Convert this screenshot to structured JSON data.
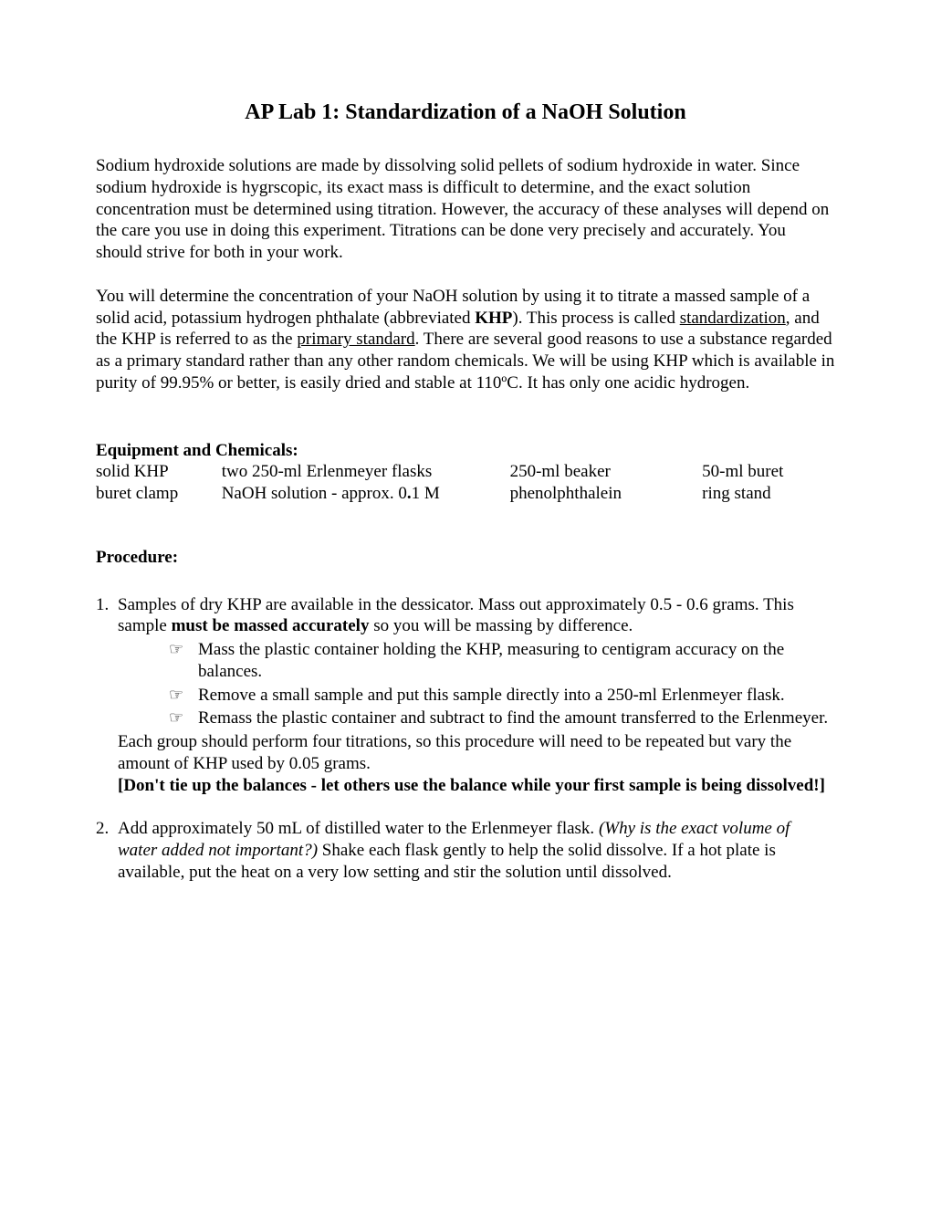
{
  "title": "AP Lab 1: Standardization of a NaOH Solution",
  "para1_a": "Sodium hydroxide solutions are made by dissolving solid pellets of sodium hydroxide in water.  Since sodium hydroxide is hygrscopic, its exact mass is difficult to determine, and the exact solution concentration must be determined using titration.  However, the accuracy of these analyses will depend on the care you use in doing this experiment.  Titrations can be done very precisely and accurately.  You should strive for both in your work.",
  "para2_a": "You will determine the concentration of your NaOH solution by using it to titrate a massed sample of a solid acid, potassium hydrogen phthalate (abbreviated ",
  "para2_b": "KHP",
  "para2_c": ").  This process is called ",
  "para2_d": "standardization",
  "para2_e": ", and the KHP is referred to as the ",
  "para2_f": "primary standard",
  "para2_g": ".  There are several good reasons to use a substance regarded as a primary standard rather than any other random chemicals.  We will be using KHP which is available in purity of 99.95% or better, is easily dried and stable at 110ºC.  It has only one acidic hydrogen.",
  "equipment_header": "Equipment and Chemicals:",
  "equip": {
    "r1c1": "solid KHP",
    "r1c2": "two 250-ml Erlenmeyer flasks",
    "r1c3": "250-ml beaker",
    "r1c4": "50-ml buret",
    "r2c1": "buret clamp",
    "r2c2_a": "NaOH solution - approx. 0",
    "r2c2_b": ".",
    "r2c2_c": "1 M",
    "r2c3": "phenolphthalein",
    "r2c4": "ring stand"
  },
  "procedure_header": "Procedure:",
  "p1_num": "1.",
  "p1_a": "Samples of dry KHP are available in the dessicator.  Mass out approximately 0.5 - 0.6 grams. This sample ",
  "p1_b": "must be massed accurately",
  "p1_c": " so you will be massing by difference.",
  "p1_bullet1": "Mass the plastic container holding the KHP, measuring to centigram accuracy on the balances.",
  "p1_bullet2": "Remove a small sample and put this sample directly into a 250-ml Erlenmeyer flask.",
  "p1_bullet3": "Remass the plastic container and subtract to find the amount transferred to the Erlenmeyer.",
  "p1_d": "Each group should perform four titrations, so this procedure will need to be repeated but vary the amount of KHP used by 0.05 grams.",
  "p1_e": "[Don't tie up the balances - let others use the balance while your first sample is being dissolved!]",
  "p2_num": "2.",
  "p2_a": "Add approximately 50 mL of distilled water to the Erlenmeyer flask. ",
  "p2_b": "(Why is the exact volume of water added not important?)",
  "p2_c": "   Shake each flask gently to help the solid dissolve.  If a hot plate is available, put the heat on a very low setting and stir the solution until dissolved.",
  "bullet_glyph": "☞"
}
